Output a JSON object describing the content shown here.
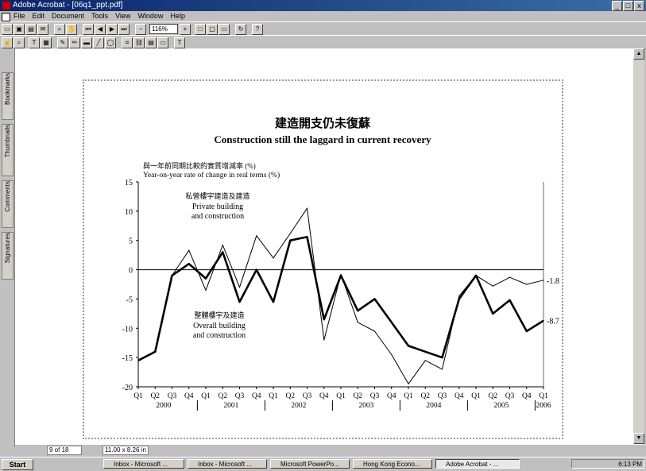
{
  "window": {
    "title": "Adobe Acrobat - [06q1_ppt.pdf]",
    "btn_min": "_",
    "btn_max": "□",
    "btn_close": "x"
  },
  "menu": [
    "File",
    "Edit",
    "Document",
    "Tools",
    "View",
    "Window",
    "Help"
  ],
  "toolbar": {
    "zoom": "116%"
  },
  "navpane": {
    "tabs": [
      "Bookmarks",
      "Thumbnails",
      "Comments",
      "Signatures"
    ]
  },
  "statusbar": {
    "page": "9 of 18",
    "size": "11.00 x 8.26 in"
  },
  "taskbar": {
    "start": "Start",
    "tasks": [
      "Inbox - Microsoft ...",
      "Inbox - Microsoft ...",
      "Microsoft PowerPo...",
      "Hong Kong Econo...",
      "Adobe Acrobat - ..."
    ],
    "clock": "6:13 PM"
  },
  "chart_data": {
    "type": "line",
    "title_zh": "建造開支仍未復蘇",
    "title": "Construction still the laggard in current recovery",
    "ylabel_zh": "與一年前同期比較的實質增減率 (%)",
    "ylabel": "Year-on-year rate of change in real terms (%)",
    "ylim": [
      -20,
      15
    ],
    "yticks": [
      "15",
      "10",
      "5",
      "0",
      "-5",
      "-10",
      "-15",
      "-20"
    ],
    "x": [
      "Q1",
      "Q2",
      "Q3",
      "Q4",
      "Q1",
      "Q2",
      "Q3",
      "Q4",
      "Q1",
      "Q2",
      "Q3",
      "Q4",
      "Q1",
      "Q2",
      "Q3",
      "Q4",
      "Q1",
      "Q2",
      "Q3",
      "Q4",
      "Q1",
      "Q2",
      "Q3",
      "Q4",
      "Q1"
    ],
    "years": [
      "2000",
      "2001",
      "2002",
      "2003",
      "2004",
      "2005",
      "2006"
    ],
    "series": [
      {
        "name": "Private building and construction",
        "name_zh": "私營樓宇建造及建造",
        "color": "#000000",
        "width": "thin",
        "values": [
          -15.5,
          -14,
          -1,
          3.3,
          -3.5,
          4.2,
          -3,
          5.8,
          2,
          6.2,
          10.5,
          -12,
          -0.8,
          -9,
          -10.5,
          -14.5,
          -19.5,
          -15.5,
          -17,
          -4.5,
          -1,
          -2.8,
          -1.3,
          -2.5,
          -1.8
        ]
      },
      {
        "name": "Overall building and construction",
        "name_zh": "整體樓宇及建造",
        "color": "#000000",
        "width": "thick",
        "values": [
          -15.5,
          -14,
          -1,
          1,
          -1.5,
          3,
          -5.5,
          0,
          -5.5,
          5,
          5.6,
          -8.5,
          -1,
          -7,
          -5,
          -9,
          -13,
          -14,
          -15,
          -5,
          -1,
          -7.5,
          -5.2,
          -10.5,
          -8.7
        ]
      }
    ],
    "end_labels": [
      "-1.8",
      "-8.7"
    ]
  }
}
